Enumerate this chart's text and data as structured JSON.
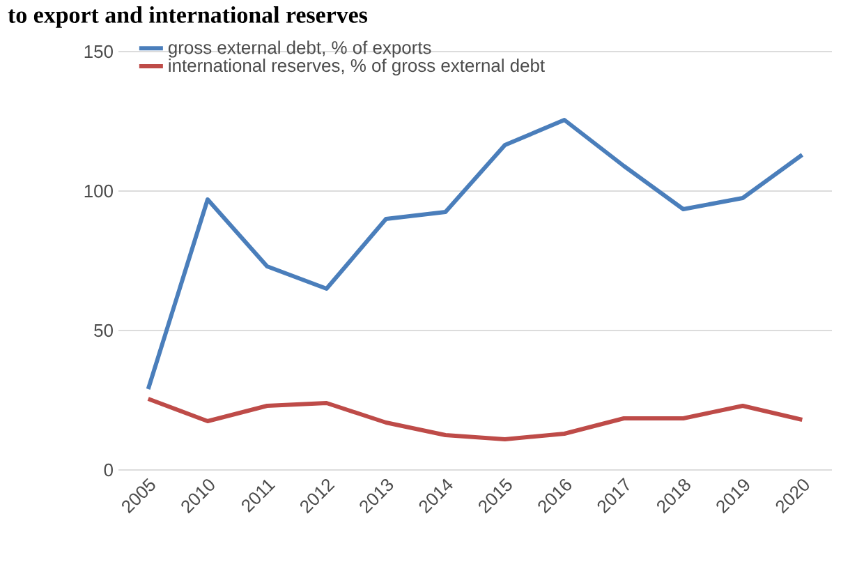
{
  "chart_data": {
    "type": "line",
    "title": "to export and international reserves",
    "categories": [
      "2005",
      "2010",
      "2011",
      "2012",
      "2013",
      "2014",
      "2015",
      "2016",
      "2017",
      "2018",
      "2019",
      "2020"
    ],
    "series": [
      {
        "name": "gross external debt, % of exports",
        "color": "#4a7ebb",
        "values": [
          29,
          97,
          73,
          65,
          90,
          92.5,
          116.5,
          125.5,
          109,
          93.5,
          97.5,
          113
        ]
      },
      {
        "name": "international reserves, % of gross external debt",
        "color": "#be4b48",
        "values": [
          25.5,
          17.5,
          23,
          24,
          17,
          12.5,
          11,
          13,
          18.5,
          18.5,
          23,
          18
        ]
      }
    ],
    "ylim": [
      0,
      150
    ],
    "yticks": [
      0,
      50,
      100,
      150
    ],
    "grid": "y",
    "legend": "top left",
    "marker": "none",
    "line_style": "solid"
  }
}
